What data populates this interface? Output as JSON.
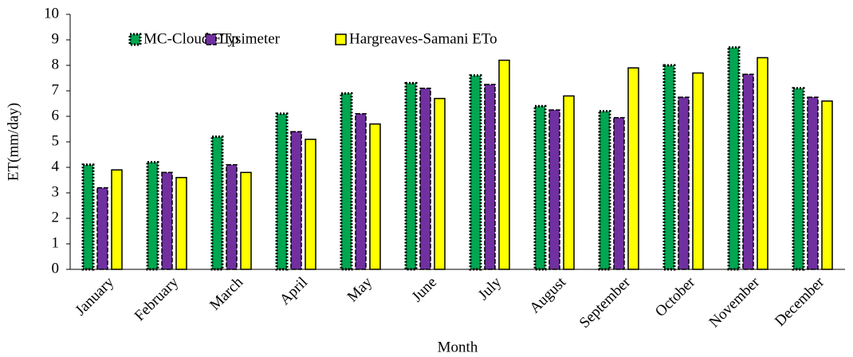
{
  "chart_data": {
    "type": "bar",
    "x_label": "Month",
    "y_label": "ET(mm/day)",
    "categories": [
      "January",
      "February",
      "March",
      "April",
      "May",
      "June",
      "July",
      "August",
      "September",
      "October",
      "November",
      "December"
    ],
    "series": [
      {
        "name": "MC-Cloud ETp",
        "color": "#00a651",
        "values": [
          4.1,
          4.2,
          5.2,
          6.1,
          6.9,
          7.3,
          7.6,
          6.4,
          6.2,
          8.0,
          8.7,
          7.1
        ]
      },
      {
        "name": "Lysimeter",
        "color": "#7030a0",
        "values": [
          3.2,
          3.8,
          4.1,
          5.4,
          6.1,
          7.1,
          7.25,
          6.25,
          5.95,
          6.75,
          7.65,
          6.75
        ]
      },
      {
        "name": "Hargreaves-Samani ETo",
        "color": "#ffff00",
        "values": [
          3.9,
          3.6,
          3.8,
          5.1,
          5.7,
          6.7,
          8.2,
          6.8,
          7.9,
          7.7,
          8.3,
          6.6
        ]
      }
    ],
    "ylim": [
      0,
      10
    ],
    "yticks": [
      0,
      1,
      2,
      3,
      4,
      5,
      6,
      7,
      8,
      9,
      10
    ],
    "grid": false,
    "legend": "top"
  }
}
